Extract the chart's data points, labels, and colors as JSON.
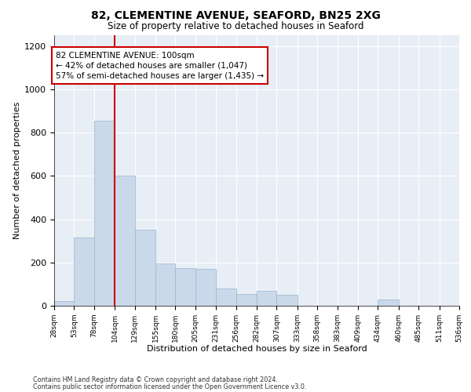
{
  "title1": "82, CLEMENTINE AVENUE, SEAFORD, BN25 2XG",
  "title2": "Size of property relative to detached houses in Seaford",
  "xlabel": "Distribution of detached houses by size in Seaford",
  "ylabel": "Number of detached properties",
  "bar_color": "#c9d9ea",
  "bar_edge_color": "#9ab4cc",
  "bg_color": "#e8eef5",
  "grid_color": "#ffffff",
  "vline_x": 104,
  "vline_color": "#cc0000",
  "annotation_text": "82 CLEMENTINE AVENUE: 100sqm\n← 42% of detached houses are smaller (1,047)\n57% of semi-detached houses are larger (1,435) →",
  "annotation_box_color": "#cc0000",
  "bin_edges": [
    28,
    53,
    78,
    104,
    129,
    155,
    180,
    205,
    231,
    256,
    282,
    307,
    333,
    358,
    383,
    409,
    434,
    460,
    485,
    511,
    536
  ],
  "bin_labels": [
    "28sqm",
    "53sqm",
    "78sqm",
    "104sqm",
    "129sqm",
    "155sqm",
    "180sqm",
    "205sqm",
    "231sqm",
    "256sqm",
    "282sqm",
    "307sqm",
    "333sqm",
    "358sqm",
    "383sqm",
    "409sqm",
    "434sqm",
    "460sqm",
    "485sqm",
    "511sqm",
    "536sqm"
  ],
  "bar_heights": [
    20,
    315,
    855,
    600,
    350,
    195,
    175,
    170,
    80,
    55,
    70,
    50,
    0,
    0,
    0,
    0,
    28,
    0,
    0,
    0,
    0
  ],
  "ylim": [
    0,
    1250
  ],
  "yticks": [
    0,
    200,
    400,
    600,
    800,
    1000,
    1200
  ],
  "footer1": "Contains HM Land Registry data © Crown copyright and database right 2024.",
  "footer2": "Contains public sector information licensed under the Open Government Licence v3.0."
}
